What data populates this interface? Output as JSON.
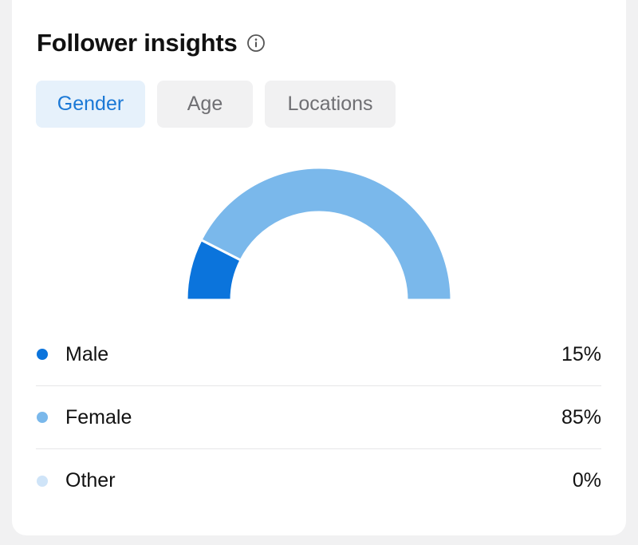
{
  "header": {
    "title": "Follower insights",
    "info_icon": "info-circle-icon"
  },
  "tabs": [
    {
      "label": "Gender",
      "active": true
    },
    {
      "label": "Age",
      "active": false
    },
    {
      "label": "Locations",
      "active": false
    }
  ],
  "chart_data": {
    "type": "pie",
    "style": "half-donut",
    "categories": [
      "Male",
      "Female",
      "Other"
    ],
    "values": [
      15,
      85,
      0
    ],
    "unit": "%",
    "colors": [
      "#0b74dc",
      "#7ab8eb",
      "#cfe4f8"
    ]
  },
  "legend": [
    {
      "label": "Male",
      "value": "15%",
      "color": "#0b74dc"
    },
    {
      "label": "Female",
      "value": "85%",
      "color": "#7ab8eb"
    },
    {
      "label": "Other",
      "value": "0%",
      "color": "#cfe4f8"
    }
  ]
}
